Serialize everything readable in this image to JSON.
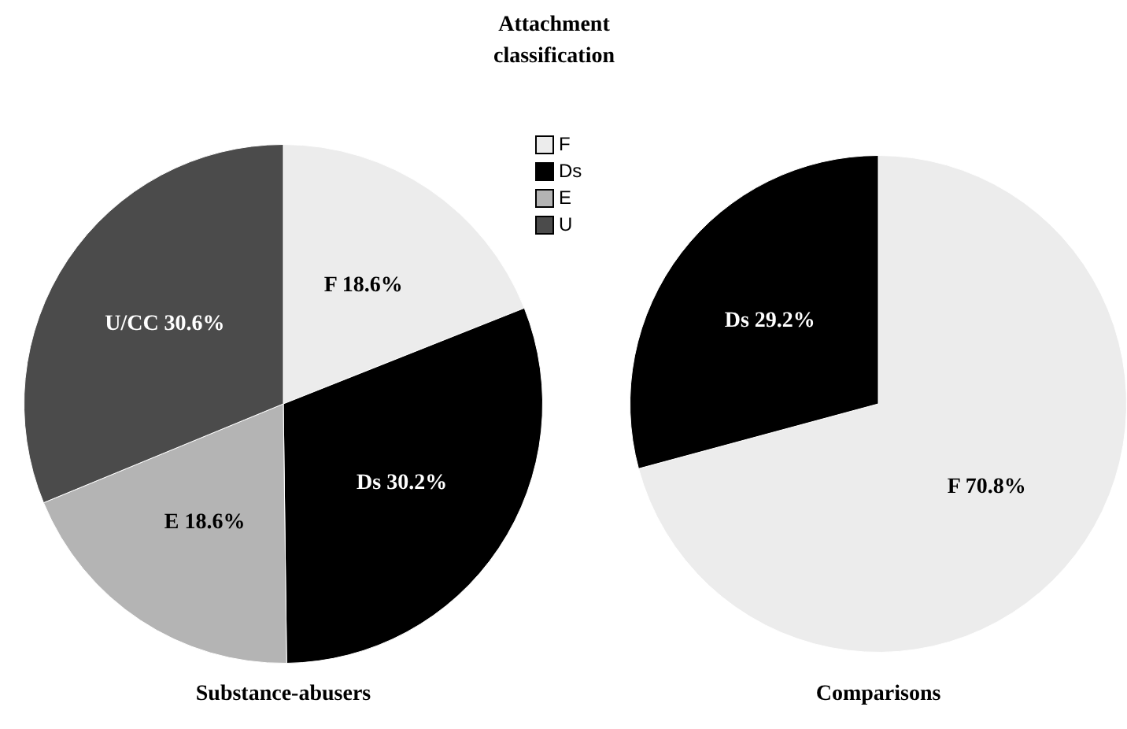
{
  "chart_data": [
    {
      "type": "pie",
      "title": "Substance-abusers",
      "legend_title": "Attachment classification",
      "categories": [
        "F",
        "Ds",
        "E",
        "U"
      ],
      "values": [
        18.6,
        30.2,
        18.6,
        30.6
      ],
      "colors": [
        "#ececec",
        "#000000",
        "#b4b4b4",
        "#4b4b4b"
      ],
      "value_labels": [
        "F 18.6%",
        "Ds 30.2%",
        "E 18.6%",
        "U/CC 30.6%"
      ],
      "legend": "top right"
    },
    {
      "type": "pie",
      "title": "Comparisons",
      "categories": [
        "F",
        "Ds"
      ],
      "values": [
        70.8,
        29.2
      ],
      "colors": [
        "#ececec",
        "#000000"
      ],
      "value_labels": [
        "70.8%",
        "29.2%"
      ],
      "legend": false
    }
  ]
}
